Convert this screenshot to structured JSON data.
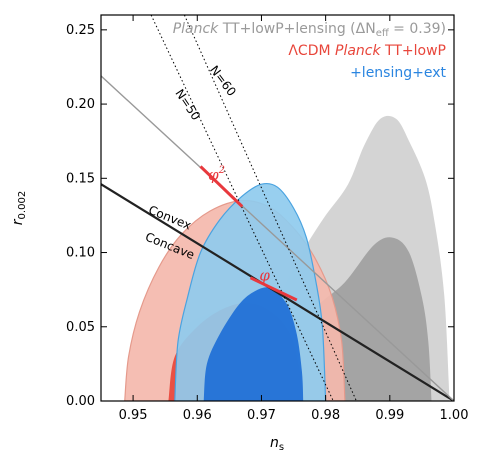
{
  "chart_data": {
    "type": "contour",
    "xlabel": "n_s",
    "xlabel_main": "n",
    "xlabel_sub": "s",
    "ylabel": "r_0.002",
    "ylabel_main": "r",
    "ylabel_sub": "0.002",
    "xlim": [
      0.945,
      1.0
    ],
    "ylim": [
      0.0,
      0.26
    ],
    "xticks": [
      "0.95",
      "0.96",
      "0.97",
      "0.98",
      "0.99",
      "1.00"
    ],
    "xtick_values": [
      0.95,
      0.96,
      0.97,
      0.98,
      0.99,
      1.0
    ],
    "yticks": [
      "0.00",
      "0.05",
      "0.10",
      "0.15",
      "0.20",
      "0.25"
    ],
    "ytick_values": [
      0.0,
      0.05,
      0.1,
      0.15,
      0.2,
      0.25
    ],
    "colors": {
      "grey_outer": "#d0d0d0",
      "grey_inner": "#a0a0a0",
      "red_outer": "#f4b9ad",
      "red_inner": "#e8463b",
      "blue_outer": "#8fcbee",
      "blue_inner": "#1e6fd6",
      "blue_outer_edge": "#4aa3e0",
      "red_accent": "#e8383d",
      "legend_grey": "#9a9a9a",
      "legend_red": "#e8463b",
      "legend_blue": "#2a85e0"
    },
    "legend": {
      "placement": "top-right",
      "entries": [
        {
          "name": "Planck TT+lowP+lensing (ΔN_eff = 0.39)",
          "parts": [
            {
              "t": "Planck",
              "i": true
            },
            {
              "t": " TT+lowP+lensing (ΔN",
              "i": false
            },
            {
              "t": "eff",
              "sub": true
            },
            {
              "t": " = 0.39)",
              "i": false
            }
          ],
          "color": "#9a9a9a"
        },
        {
          "name": "ΛCDM Planck TT+lowP",
          "parts": [
            {
              "t": "ΛCDM ",
              "i": false
            },
            {
              "t": "Planck",
              "i": true
            },
            {
              "t": " TT+lowP",
              "i": false
            }
          ],
          "color": "#e8463b"
        },
        {
          "name": "+lensing+ext",
          "parts": [
            {
              "t": "+lensing+ext",
              "i": false
            }
          ],
          "color": "#2a85e0"
        }
      ]
    },
    "contours": [
      {
        "name": "grey_outer",
        "color_key": "grey_outer",
        "points": [
          [
            0.9575,
            0.0
          ],
          [
            0.9575,
            0.045
          ],
          [
            0.9625,
            0.06
          ],
          [
            0.9685,
            0.068
          ],
          [
            0.9725,
            0.072
          ],
          [
            0.9745,
            0.085
          ],
          [
            0.977,
            0.105
          ],
          [
            0.98,
            0.125
          ],
          [
            0.9835,
            0.146
          ],
          [
            0.986,
            0.172
          ],
          [
            0.9885,
            0.19
          ],
          [
            0.991,
            0.19
          ],
          [
            0.993,
            0.175
          ],
          [
            0.9955,
            0.15
          ],
          [
            0.997,
            0.12
          ],
          [
            0.9985,
            0.07
          ],
          [
            0.9993,
            0.0
          ]
        ]
      },
      {
        "name": "grey_inner",
        "color_key": "grey_inner",
        "points": [
          [
            0.9745,
            0.0
          ],
          [
            0.9755,
            0.03
          ],
          [
            0.978,
            0.06
          ],
          [
            0.983,
            0.08
          ],
          [
            0.9875,
            0.105
          ],
          [
            0.9905,
            0.11
          ],
          [
            0.993,
            0.1
          ],
          [
            0.995,
            0.07
          ],
          [
            0.996,
            0.04
          ],
          [
            0.9965,
            0.0
          ]
        ]
      },
      {
        "name": "red_outer",
        "color_key": "red_outer",
        "points": [
          [
            0.9487,
            0.0
          ],
          [
            0.9493,
            0.03
          ],
          [
            0.951,
            0.06
          ],
          [
            0.954,
            0.09
          ],
          [
            0.9575,
            0.112
          ],
          [
            0.962,
            0.128
          ],
          [
            0.967,
            0.135
          ],
          [
            0.9715,
            0.13
          ],
          [
            0.9755,
            0.114
          ],
          [
            0.9785,
            0.095
          ],
          [
            0.981,
            0.07
          ],
          [
            0.9825,
            0.04
          ],
          [
            0.983,
            0.0
          ]
        ]
      },
      {
        "name": "red_inner",
        "color_key": "red_inner",
        "points": [
          [
            0.9555,
            0.0
          ],
          [
            0.9565,
            0.03
          ],
          [
            0.96,
            0.05
          ],
          [
            0.964,
            0.062
          ],
          [
            0.968,
            0.066
          ],
          [
            0.9715,
            0.06
          ],
          [
            0.9745,
            0.045
          ],
          [
            0.976,
            0.02
          ],
          [
            0.9765,
            0.0
          ]
        ]
      },
      {
        "name": "blue_outer",
        "color_key": "blue_outer",
        "points": [
          [
            0.9565,
            0.0
          ],
          [
            0.957,
            0.04
          ],
          [
            0.9585,
            0.07
          ],
          [
            0.9605,
            0.1
          ],
          [
            0.9635,
            0.122
          ],
          [
            0.967,
            0.138
          ],
          [
            0.97,
            0.146
          ],
          [
            0.9725,
            0.144
          ],
          [
            0.975,
            0.13
          ],
          [
            0.977,
            0.11
          ],
          [
            0.9785,
            0.08
          ],
          [
            0.9795,
            0.05
          ],
          [
            0.98,
            0.0
          ]
        ]
      },
      {
        "name": "blue_inner",
        "color_key": "blue_inner",
        "points": [
          [
            0.961,
            0.0
          ],
          [
            0.9615,
            0.025
          ],
          [
            0.9635,
            0.045
          ],
          [
            0.9665,
            0.065
          ],
          [
            0.969,
            0.074
          ],
          [
            0.9715,
            0.076
          ],
          [
            0.974,
            0.065
          ],
          [
            0.9755,
            0.045
          ],
          [
            0.9763,
            0.02
          ],
          [
            0.9765,
            0.0
          ]
        ]
      }
    ],
    "lines": [
      {
        "name": "convex-concave-boundary",
        "color": "#222222",
        "width": 2.2,
        "points": [
          [
            0.945,
            0.146
          ],
          [
            1.0,
            0.0
          ]
        ]
      },
      {
        "name": "grey-line",
        "color": "#999999",
        "width": 1.4,
        "points": [
          [
            0.945,
            0.219
          ],
          [
            1.0,
            0.0
          ]
        ]
      },
      {
        "name": "N50-line",
        "color": "#000000",
        "width": 1.0,
        "dash": "1.5,2.5",
        "points": [
          [
            0.9528,
            0.26
          ],
          [
            0.9812,
            0.0
          ]
        ]
      },
      {
        "name": "N60-line",
        "color": "#000000",
        "width": 1.0,
        "dash": "1.5,2.5",
        "points": [
          [
            0.958,
            0.26
          ],
          [
            0.9848,
            0.0
          ]
        ]
      },
      {
        "name": "phi2-segment",
        "color": "#e8383d",
        "width": 3.0,
        "points": [
          [
            0.9605,
            0.158
          ],
          [
            0.967,
            0.131
          ]
        ]
      },
      {
        "name": "phi-segment",
        "color": "#e8383d",
        "width": 3.0,
        "points": [
          [
            0.9683,
            0.083
          ],
          [
            0.9755,
            0.068
          ]
        ]
      }
    ],
    "annotations": [
      {
        "name": "N-60-label",
        "text": "N=60",
        "x": 0.9635,
        "y": 0.214,
        "angle": 53,
        "cls": "anno"
      },
      {
        "name": "N-50-label",
        "text": "N=50",
        "x": 0.958,
        "y": 0.198,
        "angle": 56,
        "cls": "anno"
      },
      {
        "name": "convex-label",
        "text": "Convex",
        "x": 0.9555,
        "y": 0.121,
        "angle": 22,
        "cls": "anno"
      },
      {
        "name": "concave-label",
        "text": "Concave",
        "x": 0.9555,
        "y": 0.102,
        "angle": 22,
        "cls": "anno"
      }
    ],
    "phi_labels": [
      {
        "name": "phi-squared-label",
        "base": "φ",
        "sup": "2",
        "x": 0.963,
        "y": 0.149
      },
      {
        "name": "phi-label",
        "base": "φ",
        "sup": "",
        "x": 0.9705,
        "y": 0.081
      }
    ]
  }
}
